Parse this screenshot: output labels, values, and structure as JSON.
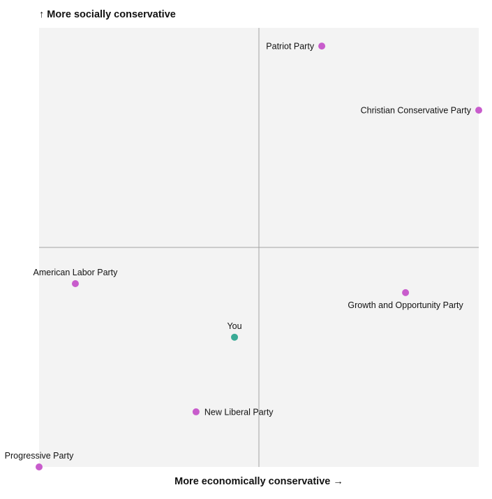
{
  "chart_data": {
    "type": "scatter",
    "title": "",
    "ylabel": "↑ More socially conservative",
    "xlabel": "More economically conservative →",
    "xlim": [
      -1,
      1
    ],
    "ylim": [
      -1,
      1
    ],
    "grid": false,
    "colors": {
      "background": "#f3f3f3",
      "party": "#c85ccc",
      "you": "#3aab96",
      "axis_line": "#a3a3a3"
    },
    "points": [
      {
        "name": "Patriot Party",
        "x": 0.286,
        "y": 0.917,
        "group": "party",
        "label_side": "left"
      },
      {
        "name": "Christian Conservative Party",
        "x": 1.0,
        "y": 0.625,
        "group": "party",
        "label_side": "left"
      },
      {
        "name": "American Labor Party",
        "x": -0.835,
        "y": -0.165,
        "group": "party",
        "label_side": "above"
      },
      {
        "name": "Growth and Opportunity Party",
        "x": 0.667,
        "y": -0.206,
        "group": "party",
        "label_side": "below"
      },
      {
        "name": "You",
        "x": -0.111,
        "y": -0.409,
        "group": "you",
        "label_side": "above"
      },
      {
        "name": "New Liberal Party",
        "x": -0.286,
        "y": -0.749,
        "group": "party",
        "label_side": "right"
      },
      {
        "name": "Progressive Party",
        "x": -1.0,
        "y": -1.0,
        "group": "party",
        "label_side": "above"
      }
    ]
  }
}
